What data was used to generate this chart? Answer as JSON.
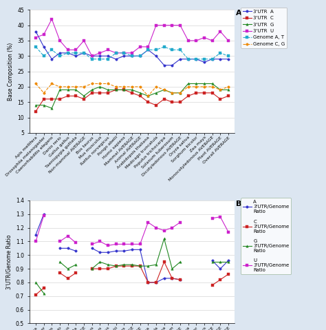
{
  "categories": [
    "Apis mellifera",
    "Drosophila melanogaster",
    "Caenorhabditis elegans",
    "Danio rerio",
    "Gallus gallus",
    "Taeniopygia guttata",
    "Non-mammal AVERAGE",
    "Bos taurus",
    "Mus musculus",
    "Rattus norvegicus",
    "Pongo abelii",
    "Homo sapiens",
    "Mammal AVERAGE",
    "Animal AVERAGE",
    "Arabidopsis thaliana",
    "Medicago truncatula",
    "Populus trichocarpa",
    "Solanum tuberosum",
    "Dicotyledonous AVERAGE",
    "Oryza sativa",
    "Sorghum bicolor",
    "Zea mays",
    "Monocotyledonous AVERAGE",
    "Plant AVERAGE",
    "Overall AVERAGE"
  ],
  "A_3utr": [
    38,
    33,
    29,
    31,
    31,
    30,
    31,
    30,
    30,
    30,
    29,
    30,
    30,
    30,
    32,
    30,
    27,
    27,
    29,
    29,
    29,
    28,
    29,
    29,
    29
  ],
  "C_3utr": [
    12,
    16,
    16,
    16,
    17,
    17,
    16,
    18,
    18,
    18,
    19,
    19,
    18,
    17,
    15,
    14,
    16,
    15,
    15,
    17,
    18,
    18,
    18,
    16,
    17
  ],
  "G_3utr": [
    14,
    14,
    13,
    19,
    19,
    19,
    17,
    19,
    20,
    19,
    19,
    19,
    19,
    18,
    17,
    18,
    19,
    18,
    18,
    21,
    21,
    21,
    21,
    19,
    19
  ],
  "U_3utr": [
    36,
    37,
    42,
    35,
    32,
    32,
    35,
    30,
    31,
    32,
    31,
    31,
    31,
    33,
    33,
    40,
    40,
    40,
    40,
    35,
    35,
    36,
    35,
    38,
    35
  ],
  "A_genome": [
    33,
    30,
    32,
    30,
    31,
    31,
    31,
    29,
    29,
    29,
    31,
    31,
    30,
    30,
    32,
    32,
    33,
    32,
    32,
    29,
    29,
    29,
    29,
    31,
    30
  ],
  "C_genome": [
    21,
    18,
    21,
    20,
    20,
    20,
    20,
    21,
    21,
    21,
    20,
    20,
    20,
    20,
    17,
    20,
    19,
    18,
    18,
    20,
    20,
    20,
    20,
    19,
    20
  ],
  "A_ratio": [
    1.15,
    1.3,
    null,
    1.05,
    1.05,
    1.03,
    null,
    1.05,
    1.02,
    1.02,
    1.03,
    1.03,
    1.04,
    1.04,
    0.8,
    0.8,
    0.83,
    0.83,
    0.82,
    null,
    null,
    null,
    0.96,
    0.9,
    0.96
  ],
  "C_ratio": [
    0.71,
    0.76,
    null,
    0.87,
    0.83,
    0.87,
    null,
    0.9,
    0.9,
    0.9,
    0.92,
    0.92,
    0.92,
    0.92,
    0.8,
    0.8,
    0.95,
    0.83,
    0.82,
    null,
    null,
    null,
    0.78,
    0.82,
    0.86
  ],
  "G_ratio": [
    0.8,
    0.72,
    null,
    0.95,
    0.9,
    0.93,
    null,
    0.9,
    0.95,
    0.93,
    0.92,
    0.93,
    0.93,
    0.92,
    0.92,
    0.93,
    1.12,
    0.9,
    0.95,
    null,
    null,
    null,
    0.95,
    0.95,
    0.95
  ],
  "U_ratio": [
    1.1,
    1.29,
    null,
    1.1,
    1.14,
    1.09,
    null,
    1.08,
    1.1,
    1.07,
    1.08,
    1.08,
    1.08,
    1.08,
    1.24,
    1.2,
    1.18,
    1.2,
    1.24,
    null,
    null,
    null,
    1.27,
    1.28,
    1.17
  ],
  "color_A": "#3333cc",
  "color_C": "#cc2222",
  "color_G": "#228822",
  "color_U": "#cc22cc",
  "color_genome_AT": "#22aacc",
  "color_genome_CG": "#ee8800",
  "bg_color": "#dce6f1",
  "panel_bg": "#ffffff",
  "xlabels_fontsize": 4.5,
  "tick_fontsize": 5.5,
  "ylabel_fontsize": 5.5
}
